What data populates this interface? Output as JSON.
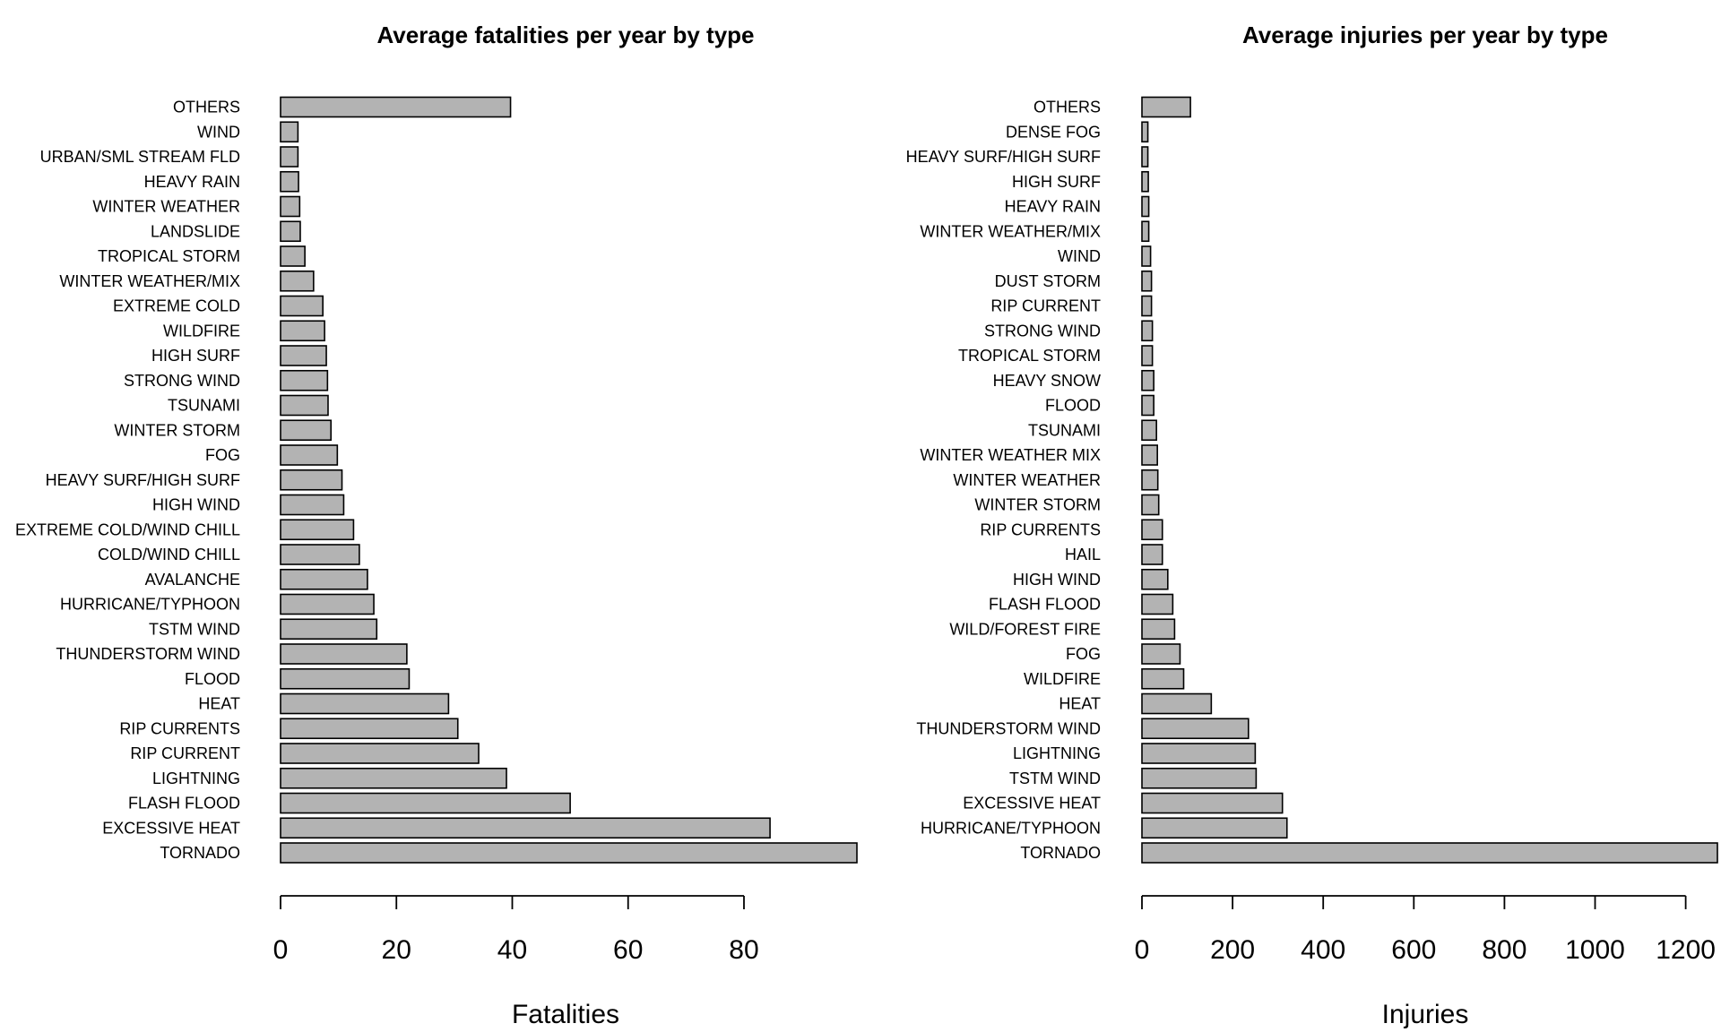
{
  "chart_data": [
    {
      "type": "bar",
      "orientation": "horizontal",
      "title": "Average fatalities per year by type",
      "xlabel": "Fatalities",
      "ylabel": "",
      "xlim": [
        0,
        99.5
      ],
      "xticks": [
        0,
        20,
        40,
        60,
        80
      ],
      "tick_labels": [
        "0",
        "20",
        "40",
        "60",
        "80"
      ],
      "bar_fill": "#b3b3b3",
      "bar_stroke": "#000000",
      "grid": false,
      "categories": [
        "TORNADO",
        "EXCESSIVE HEAT",
        "FLASH FLOOD",
        "LIGHTNING",
        "RIP CURRENT",
        "RIP CURRENTS",
        "HEAT",
        "FLOOD",
        "THUNDERSTORM WIND",
        "TSTM WIND",
        "HURRICANE/TYPHOON",
        "AVALANCHE",
        "COLD/WIND CHILL",
        "EXTREME COLD/WIND CHILL",
        "HIGH WIND",
        "HEAVY SURF/HIGH SURF",
        "FOG",
        "WINTER STORM",
        "TSUNAMI",
        "STRONG WIND",
        "HIGH SURF",
        "WILDFIRE",
        "EXTREME COLD",
        "WINTER WEATHER/MIX",
        "TROPICAL STORM",
        "LANDSLIDE",
        "WINTER WEATHER",
        "HEAVY RAIN",
        "URBAN/SML STREAM FLD",
        "WIND",
        "OTHERS"
      ],
      "values": [
        99.5,
        84.5,
        50,
        39,
        34.2,
        30.6,
        29,
        22.2,
        21.8,
        16.6,
        16.1,
        15,
        13.6,
        12.6,
        10.9,
        10.6,
        9.8,
        8.7,
        8.2,
        8.1,
        7.9,
        7.6,
        7.3,
        5.7,
        4.2,
        3.4,
        3.3,
        3.1,
        3.0,
        3.0,
        39.7
      ]
    },
    {
      "type": "bar",
      "orientation": "horizontal",
      "title": "Average injuries per year by type",
      "xlabel": "Injuries",
      "ylabel": "",
      "xlim": [
        0,
        1270
      ],
      "xticks": [
        0,
        200,
        400,
        600,
        800,
        1000,
        1200
      ],
      "tick_labels": [
        "0",
        "200",
        "400",
        "600",
        "800",
        "1000",
        "1200"
      ],
      "bar_fill": "#b3b3b3",
      "bar_stroke": "#000000",
      "grid": false,
      "categories": [
        "TORNADO",
        "HURRICANE/TYPHOON",
        "EXCESSIVE HEAT",
        "TSTM WIND",
        "LIGHTNING",
        "THUNDERSTORM WIND",
        "HEAT",
        "WILDFIRE",
        "FOG",
        "WILD/FOREST FIRE",
        "FLASH FLOOD",
        "HIGH WIND",
        "HAIL",
        "RIP CURRENTS",
        "WINTER STORM",
        "WINTER WEATHER",
        "WINTER WEATHER MIX",
        "TSUNAMI",
        "FLOOD",
        "HEAVY SNOW",
        "TROPICAL STORM",
        "STRONG WIND",
        "RIP CURRENT",
        "DUST STORM",
        "WIND",
        "WINTER WEATHER/MIX",
        "HEAVY RAIN",
        "HIGH SURF",
        "HEAVY SURF/HIGH SURF",
        "DENSE FOG",
        "OTHERS"
      ],
      "values": [
        1270,
        320,
        310,
        252,
        250,
        235,
        153,
        92,
        84,
        72,
        68,
        57,
        45,
        45,
        37,
        35,
        34,
        32,
        26,
        26,
        23,
        23,
        21,
        21,
        19,
        15,
        15,
        14,
        13,
        13,
        107
      ]
    }
  ]
}
